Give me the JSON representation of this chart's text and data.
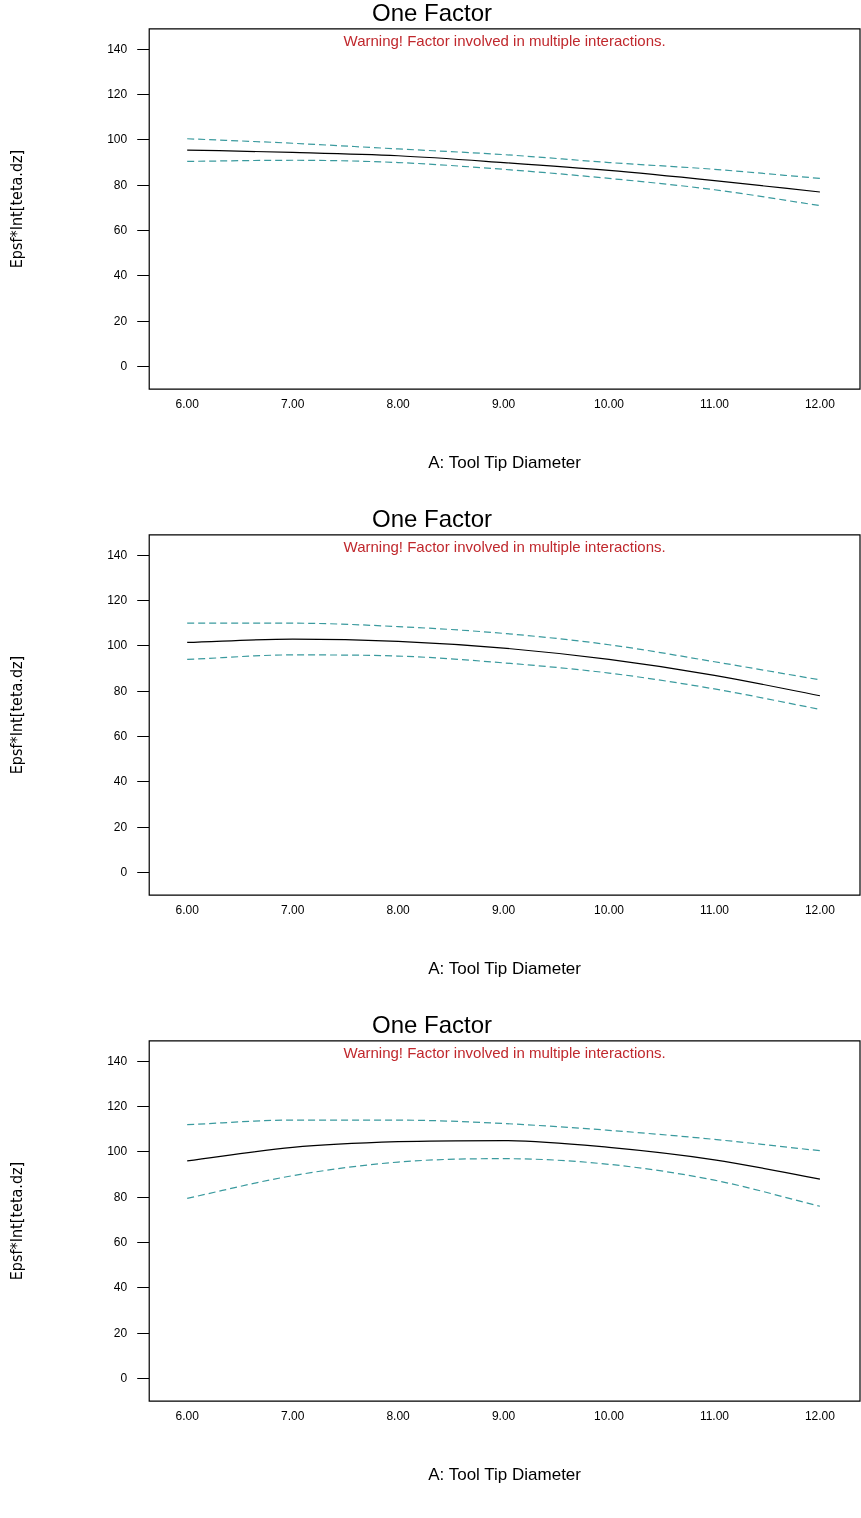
{
  "chart_data": [
    {
      "type": "line",
      "title": "One Factor",
      "xlabel": "A: Tool Tip Diameter",
      "ylabel": "Epsf*Int[teta.dz]",
      "annotations": [
        "Warning! Factor involved in multiple interactions."
      ],
      "x": [
        6,
        7,
        8,
        9,
        10,
        11,
        12
      ],
      "xlim": [
        5.64,
        12.38
      ],
      "xticks": [
        {
          "value": 6,
          "label": "6.00"
        },
        {
          "value": 7,
          "label": "7.00"
        },
        {
          "value": 8,
          "label": "8.00"
        },
        {
          "value": 9,
          "label": "9.00"
        },
        {
          "value": 10,
          "label": "10.00"
        },
        {
          "value": 11,
          "label": "11.00"
        },
        {
          "value": 12,
          "label": "12.00"
        }
      ],
      "ylim": [
        -10,
        149
      ],
      "yticks": [
        0,
        20,
        40,
        60,
        80,
        100,
        120,
        140
      ],
      "grid": false,
      "legend": false,
      "marker": "none",
      "series": [
        {
          "color": "#000000",
          "line_style": "solid",
          "values": [
            95.5,
            94.5,
            93,
            90,
            86.5,
            82,
            77
          ]
        },
        {
          "color": "#3a9a9e",
          "line_style": "dashed",
          "values": [
            100.5,
            98.5,
            96,
            93.5,
            90,
            87,
            83
          ]
        },
        {
          "color": "#3a9a9e",
          "line_style": "dashed",
          "values": [
            90.5,
            91,
            90,
            87,
            83,
            78,
            71
          ]
        }
      ]
    },
    {
      "type": "line",
      "title": "One Factor",
      "xlabel": "A: Tool Tip Diameter",
      "ylabel": "Epsf*Int[teta.dz]",
      "annotations": [
        "Warning! Factor involved in multiple interactions."
      ],
      "x": [
        6,
        7,
        8,
        9,
        10,
        11,
        12
      ],
      "xlim": [
        5.64,
        12.38
      ],
      "xticks": [
        {
          "value": 6,
          "label": "6.00"
        },
        {
          "value": 7,
          "label": "7.00"
        },
        {
          "value": 8,
          "label": "8.00"
        },
        {
          "value": 9,
          "label": "9.00"
        },
        {
          "value": 10,
          "label": "10.00"
        },
        {
          "value": 11,
          "label": "11.00"
        },
        {
          "value": 12,
          "label": "12.00"
        }
      ],
      "ylim": [
        -10,
        149
      ],
      "yticks": [
        0,
        20,
        40,
        60,
        80,
        100,
        120,
        140
      ],
      "grid": false,
      "legend": false,
      "marker": "none",
      "series": [
        {
          "color": "#000000",
          "line_style": "solid",
          "values": [
            101.5,
            103,
            102,
            99,
            94,
            87,
            78
          ]
        },
        {
          "color": "#3a9a9e",
          "line_style": "dashed",
          "values": [
            110,
            110,
            108.5,
            105.5,
            100.5,
            93,
            85
          ]
        },
        {
          "color": "#3a9a9e",
          "line_style": "dashed",
          "values": [
            94,
            96,
            95.5,
            92.5,
            88,
            81,
            72
          ]
        }
      ]
    },
    {
      "type": "line",
      "title": "One Factor",
      "xlabel": "A: Tool Tip Diameter",
      "ylabel": "Epsf*Int[teta.dz]",
      "annotations": [
        "Warning! Factor involved in multiple interactions."
      ],
      "x": [
        6,
        7,
        8,
        9,
        10,
        11,
        12
      ],
      "xlim": [
        5.64,
        12.38
      ],
      "xticks": [
        {
          "value": 6,
          "label": "6.00"
        },
        {
          "value": 7,
          "label": "7.00"
        },
        {
          "value": 8,
          "label": "8.00"
        },
        {
          "value": 9,
          "label": "9.00"
        },
        {
          "value": 10,
          "label": "10.00"
        },
        {
          "value": 11,
          "label": "11.00"
        },
        {
          "value": 12,
          "label": "12.00"
        }
      ],
      "ylim": [
        -10,
        149
      ],
      "yticks": [
        0,
        20,
        40,
        60,
        80,
        100,
        120,
        140
      ],
      "grid": false,
      "legend": false,
      "marker": "none",
      "series": [
        {
          "color": "#000000",
          "line_style": "solid",
          "values": [
            96,
            102,
            104.5,
            105,
            102,
            96.5,
            88
          ]
        },
        {
          "color": "#3a9a9e",
          "line_style": "dashed",
          "values": [
            112,
            114,
            114,
            112.5,
            109.5,
            105.5,
            100.5
          ]
        },
        {
          "color": "#3a9a9e",
          "line_style": "dashed",
          "values": [
            79.5,
            89.5,
            95.5,
            97,
            94.5,
            87.5,
            76
          ]
        }
      ]
    }
  ]
}
